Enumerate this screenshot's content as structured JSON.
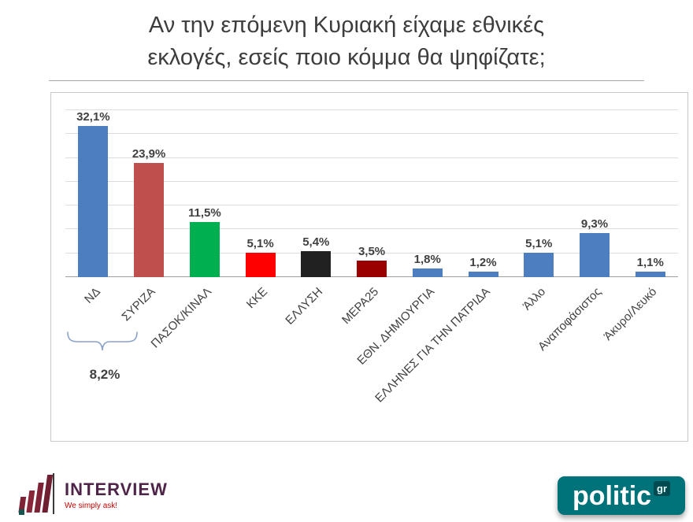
{
  "title": {
    "line1": "Αν την επόμενη Κυριακή είχαμε εθνικές",
    "line2": "εκλογές, εσείς ποιο κόμμα θα ψηφίζατε;"
  },
  "chart_data": {
    "type": "bar",
    "title": "Αν την επόμενη Κυριακή είχαμε εθνικές εκλογές, εσείς ποιο κόμμα θα ψηφίζατε;",
    "categories": [
      "ΝΔ",
      "ΣΥΡΙΖΑ",
      "ΠΑΣΟΚ/ΚΙΝΑΛ",
      "ΚΚΕ",
      "ΕΛΛΥΣΗ",
      "ΜΕΡΑ25",
      "ΕΘΝ. ΔΗΜΙΟΥΡΓΙΑ",
      "ΕΛΛΗΝΕΣ ΓΙΑ ΤΗΝ ΠΑΤΡΙΔΑ",
      "Άλλο",
      "Αναποφάσιστος",
      "Άκυρο/Λευκό"
    ],
    "values": [
      32.1,
      23.9,
      11.5,
      5.1,
      5.4,
      3.5,
      1.8,
      1.2,
      5.1,
      9.3,
      1.1
    ],
    "value_labels": [
      "32,1%",
      "23,9%",
      "11,5%",
      "5,1%",
      "5,4%",
      "3,5%",
      "1,8%",
      "1,2%",
      "5,1%",
      "9,3%",
      "1,1%"
    ],
    "bar_colors": [
      "#4d7ebf",
      "#bf4f4d",
      "#00b050",
      "#ff0000",
      "#212121",
      "#9b0000",
      "#4d7ebf",
      "#4d7ebf",
      "#4d7ebf",
      "#4d7ebf",
      "#4d7ebf"
    ],
    "xlabel": "",
    "ylabel": "",
    "ylim": [
      0,
      35
    ],
    "grid": true,
    "gridline_step": 5,
    "legend": "none",
    "annotation": {
      "text": "8,2%",
      "span_categories": [
        "ΝΔ",
        "ΣΥΡΙΖΑ"
      ]
    }
  },
  "footer": {
    "interview_logo": {
      "brand": "INTERVIEW",
      "tagline": "We simply ask!",
      "accent_color": "#7d2335"
    },
    "politic_logo": {
      "name": "politic",
      "suffix": "gr",
      "background_color": "#00737a"
    }
  }
}
